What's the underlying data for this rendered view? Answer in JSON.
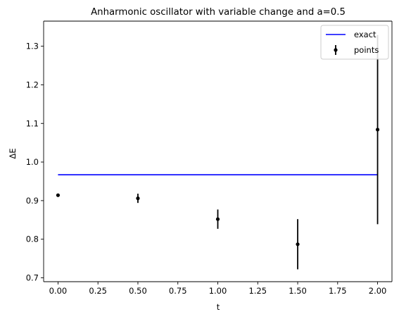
{
  "chart_data": {
    "type": "scatter",
    "title": "Anharmonic oscillator with variable change and a=0.5",
    "xlabel": "t",
    "ylabel": "ΔE",
    "xlim": [
      -0.09,
      2.09
    ],
    "ylim": [
      0.69,
      1.365
    ],
    "xticks": [
      0.0,
      0.25,
      0.5,
      0.75,
      1.0,
      1.25,
      1.5,
      1.75,
      2.0
    ],
    "xtick_labels": [
      "0.00",
      "0.25",
      "0.50",
      "0.75",
      "1.00",
      "1.25",
      "1.50",
      "1.75",
      "2.00"
    ],
    "yticks": [
      0.7,
      0.8,
      0.9,
      1.0,
      1.1,
      1.2,
      1.3
    ],
    "ytick_labels": [
      "0.7",
      "0.8",
      "0.9",
      "1.0",
      "1.1",
      "1.2",
      "1.3"
    ],
    "grid": false,
    "legend_position": "top-right",
    "series": [
      {
        "name": "exact",
        "kind": "line",
        "color": "#0000ff",
        "x": [
          0.0,
          2.0
        ],
        "y": [
          0.967,
          0.967
        ]
      },
      {
        "name": "points",
        "kind": "errorbar",
        "color": "#000000",
        "x": [
          0.0,
          0.5,
          1.0,
          1.5,
          2.0
        ],
        "y": [
          0.914,
          0.906,
          0.852,
          0.787,
          1.084
        ],
        "yerr": [
          0.004,
          0.012,
          0.025,
          0.065,
          0.245
        ]
      }
    ]
  }
}
